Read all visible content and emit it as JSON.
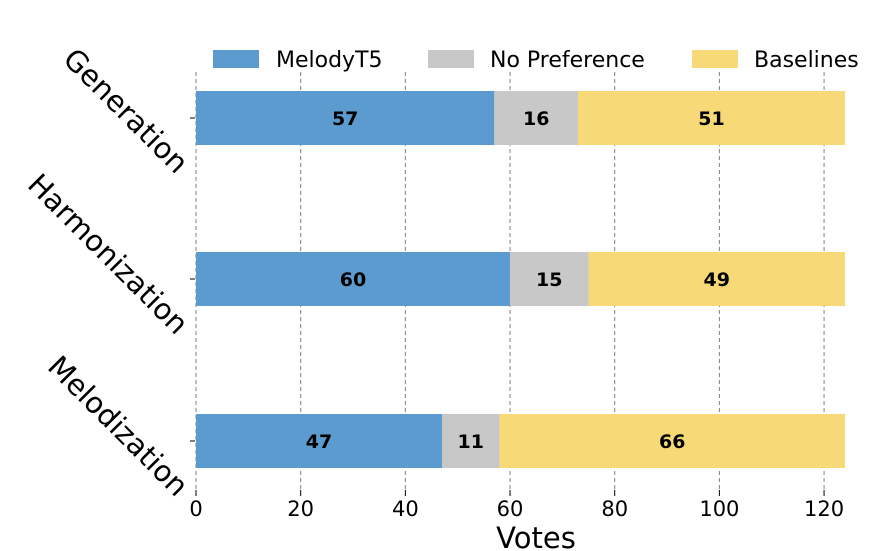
{
  "chart_data": {
    "type": "bar",
    "orientation": "horizontal",
    "stacked": true,
    "categories": [
      "Generation",
      "Harmonization",
      "Melodization"
    ],
    "series": [
      {
        "name": "MelodyT5",
        "values": [
          57,
          60,
          47
        ],
        "color": "#5b9bd0"
      },
      {
        "name": "No Preference",
        "values": [
          16,
          15,
          11
        ],
        "color": "#c8c8c8"
      },
      {
        "name": "Baselines",
        "values": [
          51,
          49,
          66
        ],
        "color": "#f8d977"
      }
    ],
    "title": "",
    "xlabel": "Votes",
    "ylabel": "",
    "xlim": [
      0,
      124
    ],
    "xticks": [
      0,
      20,
      40,
      60,
      80,
      100,
      120
    ],
    "grid": "vertical dashed",
    "legend": "top"
  }
}
